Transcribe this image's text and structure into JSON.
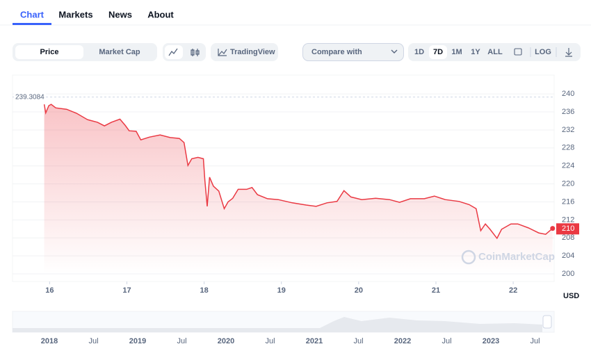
{
  "tabs": [
    "Chart",
    "Markets",
    "News",
    "About"
  ],
  "toolbar": {
    "price": "Price",
    "market_cap": "Market Cap",
    "tradingview": "TradingView",
    "compare": "Compare with",
    "ranges": [
      "1D",
      "7D",
      "1M",
      "1Y",
      "ALL"
    ],
    "log": "LOG"
  },
  "chart_data": {
    "type": "line",
    "x": [
      15.93,
      15.95,
      15.99,
      16.02,
      16.08,
      16.22,
      16.35,
      16.49,
      16.62,
      16.71,
      16.8,
      16.91,
      16.98,
      17.03,
      17.12,
      17.18,
      17.29,
      17.43,
      17.56,
      17.68,
      17.74,
      17.79,
      17.84,
      17.92,
      17.99,
      18.01,
      18.04,
      18.07,
      18.12,
      18.19,
      18.26,
      18.31,
      18.37,
      18.44,
      18.55,
      18.62,
      18.69,
      18.82,
      18.96,
      19.14,
      19.32,
      19.45,
      19.59,
      19.72,
      19.81,
      19.9,
      20.04,
      20.22,
      20.4,
      20.53,
      20.67,
      20.85,
      20.98,
      21.12,
      21.3,
      21.43,
      21.52,
      21.58,
      21.64,
      21.7,
      21.79,
      21.85,
      21.97,
      22.06,
      22.2,
      22.33,
      22.42,
      22.51
    ],
    "values": [
      237.7,
      235.8,
      237.4,
      237.7,
      236.9,
      236.6,
      235.7,
      234.3,
      233.7,
      232.9,
      233.7,
      234.4,
      233.0,
      231.8,
      231.7,
      229.8,
      230.4,
      230.9,
      230.3,
      230.1,
      229.2,
      224.1,
      225.6,
      225.9,
      225.6,
      220.7,
      215.0,
      221.5,
      219.5,
      218.4,
      214.5,
      216.0,
      216.8,
      218.8,
      218.8,
      219.2,
      217.6,
      216.7,
      216.5,
      215.8,
      215.3,
      215.0,
      215.8,
      216.1,
      218.5,
      217.1,
      216.5,
      216.8,
      216.5,
      215.9,
      216.7,
      216.7,
      217.3,
      216.5,
      216.1,
      215.4,
      214.5,
      209.6,
      211.1,
      209.9,
      207.9,
      209.9,
      211.1,
      211.1,
      210.2,
      209.1,
      208.8,
      210.1
    ],
    "color": "#ea3943",
    "xlim": [
      15.52,
      22.53
    ],
    "xticks": [
      16,
      17,
      18,
      19,
      20,
      21,
      22
    ],
    "ylim": [
      198.3,
      244.2
    ],
    "yticks": [
      200,
      204,
      208,
      212,
      216,
      220,
      224,
      228,
      232,
      236,
      240
    ],
    "grid": true,
    "max_label": 239.3084,
    "current_price": 210,
    "currency": "USD",
    "watermark": "CoinMarketCap"
  },
  "navigator": {
    "labels": [
      "2018",
      "Jul",
      "2019",
      "Jul",
      "2020",
      "Jul",
      "2021",
      "Jul",
      "2022",
      "Jul",
      "2023",
      "Jul"
    ]
  }
}
